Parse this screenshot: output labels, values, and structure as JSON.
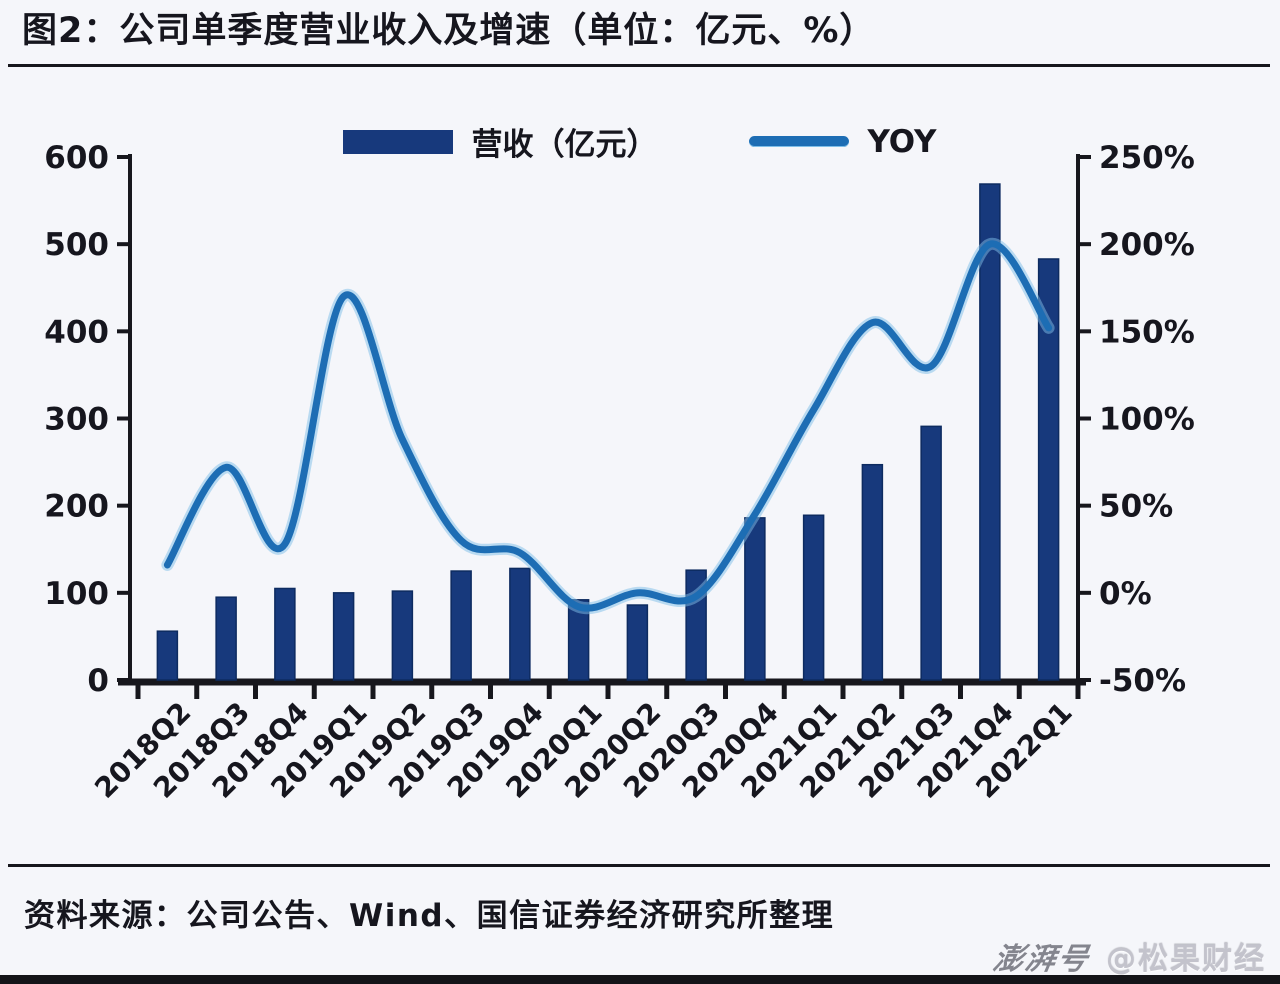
{
  "colors": {
    "background": "#F5F6FA",
    "bar": "#17397C",
    "bar_edge": "#0D2B60",
    "line": "#1D6DB4",
    "line_highlight": "#7EBEE8",
    "text": "#16161E",
    "axis": "#17171D",
    "divider": "#16161C",
    "watermark_brand": "#84858E",
    "watermark_account": "#C3C3CC",
    "bottom_strip": "#141418"
  },
  "chart_data": {
    "type": "bar+line",
    "title": "图2：公司单季度营业收入及增速（单位：亿元、%）",
    "categories": [
      "2018Q2",
      "2018Q3",
      "2018Q4",
      "2019Q1",
      "2019Q2",
      "2019Q3",
      "2019Q4",
      "2020Q1",
      "2020Q2",
      "2020Q3",
      "2020Q4",
      "2021Q1",
      "2021Q2",
      "2021Q3",
      "2021Q4",
      "2022Q1"
    ],
    "series": [
      {
        "name": "营收（亿元）",
        "type": "bar",
        "axis": "left",
        "values": [
          56,
          95,
          105,
          100,
          102,
          125,
          128,
          92,
          86,
          126,
          186,
          189,
          247,
          291,
          569,
          483
        ]
      },
      {
        "name": "YOY",
        "type": "line",
        "axis": "right",
        "unit": "%",
        "values": [
          16,
          72,
          28,
          170,
          88,
          30,
          23,
          -8,
          0,
          -2,
          45,
          105,
          155,
          130,
          200,
          152
        ]
      }
    ],
    "left_axis": {
      "min": 0,
      "max": 600,
      "tick_values": [
        0,
        100,
        200,
        300,
        400,
        500,
        600
      ],
      "suffix": ""
    },
    "right_axis": {
      "min": -50,
      "max": 250,
      "tick_values": [
        -50,
        0,
        50,
        100,
        150,
        200,
        250
      ],
      "suffix": "%"
    },
    "legend_position": "top-center",
    "grid": false
  },
  "source_note": "资料来源：公司公告、Wind、国信证券经济研究所整理",
  "watermark": {
    "brand": "澎湃号",
    "account": "@松果财经"
  }
}
